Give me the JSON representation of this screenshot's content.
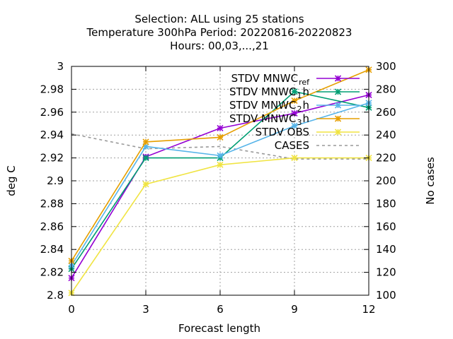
{
  "chart_data": {
    "type": "line",
    "title_lines": [
      "Selection: ALL using    25 stations",
      "Temperature 300hPa   Period: 20220816-20220823",
      "Hours:  00,03,...,21"
    ],
    "xlabel": "Forecast length",
    "ylabel": "deg C",
    "y2label": "No cases",
    "x": [
      0,
      3,
      6,
      9,
      12
    ],
    "xlim": [
      0,
      12
    ],
    "ylim": [
      2.8,
      3.0
    ],
    "y2lim": [
      100,
      300
    ],
    "xticks": [
      "0",
      "3",
      "6",
      "9",
      "12"
    ],
    "yticks": [
      "2.8",
      "2.82",
      "2.84",
      "2.86",
      "2.88",
      "2.9",
      "2.92",
      "2.94",
      "2.96",
      "2.98",
      "3"
    ],
    "y2ticks": [
      "100",
      "120",
      "140",
      "160",
      "180",
      "200",
      "220",
      "240",
      "260",
      "280",
      "300"
    ],
    "grid": true,
    "legend_position": "top-right",
    "series": [
      {
        "name": "STDV MNWC_ref",
        "legend_main": "STDV MNWC",
        "legend_sub": "ref",
        "color": "#9400d3",
        "marker": "star",
        "axis": "y",
        "values": [
          2.815,
          2.921,
          2.946,
          2.959,
          2.975
        ]
      },
      {
        "name": "STDV MNWC_1h",
        "legend_main": "STDV MNWC",
        "legend_sub": "1",
        "legend_tail": "h",
        "color": "#009e73",
        "marker": "star",
        "axis": "y",
        "values": [
          2.823,
          2.92,
          2.92,
          2.978,
          2.964
        ]
      },
      {
        "name": "STDV MNWC_2h",
        "legend_main": "STDV MNWC",
        "legend_sub": "2",
        "legend_tail": "h",
        "color": "#56b4e9",
        "marker": "star",
        "axis": "y",
        "values": [
          2.826,
          2.93,
          2.922,
          2.948,
          2.968
        ]
      },
      {
        "name": "STDV MNWC_3h",
        "legend_main": "STDV MNWC",
        "legend_sub": "3",
        "legend_tail": "h",
        "color": "#e69f00",
        "marker": "star",
        "axis": "y",
        "values": [
          2.83,
          2.934,
          2.938,
          2.97,
          2.997
        ]
      },
      {
        "name": "STDV OBS",
        "legend_main": "STDV OBS",
        "color": "#f0e442",
        "marker": "star",
        "axis": "y",
        "values": [
          2.802,
          2.897,
          2.914,
          2.92,
          2.92
        ]
      },
      {
        "name": "CASES",
        "legend_main": "CASES",
        "color": "#999999",
        "marker": "none",
        "dashed": true,
        "axis": "y2",
        "values": [
          241,
          228,
          230,
          219,
          219
        ]
      }
    ]
  }
}
